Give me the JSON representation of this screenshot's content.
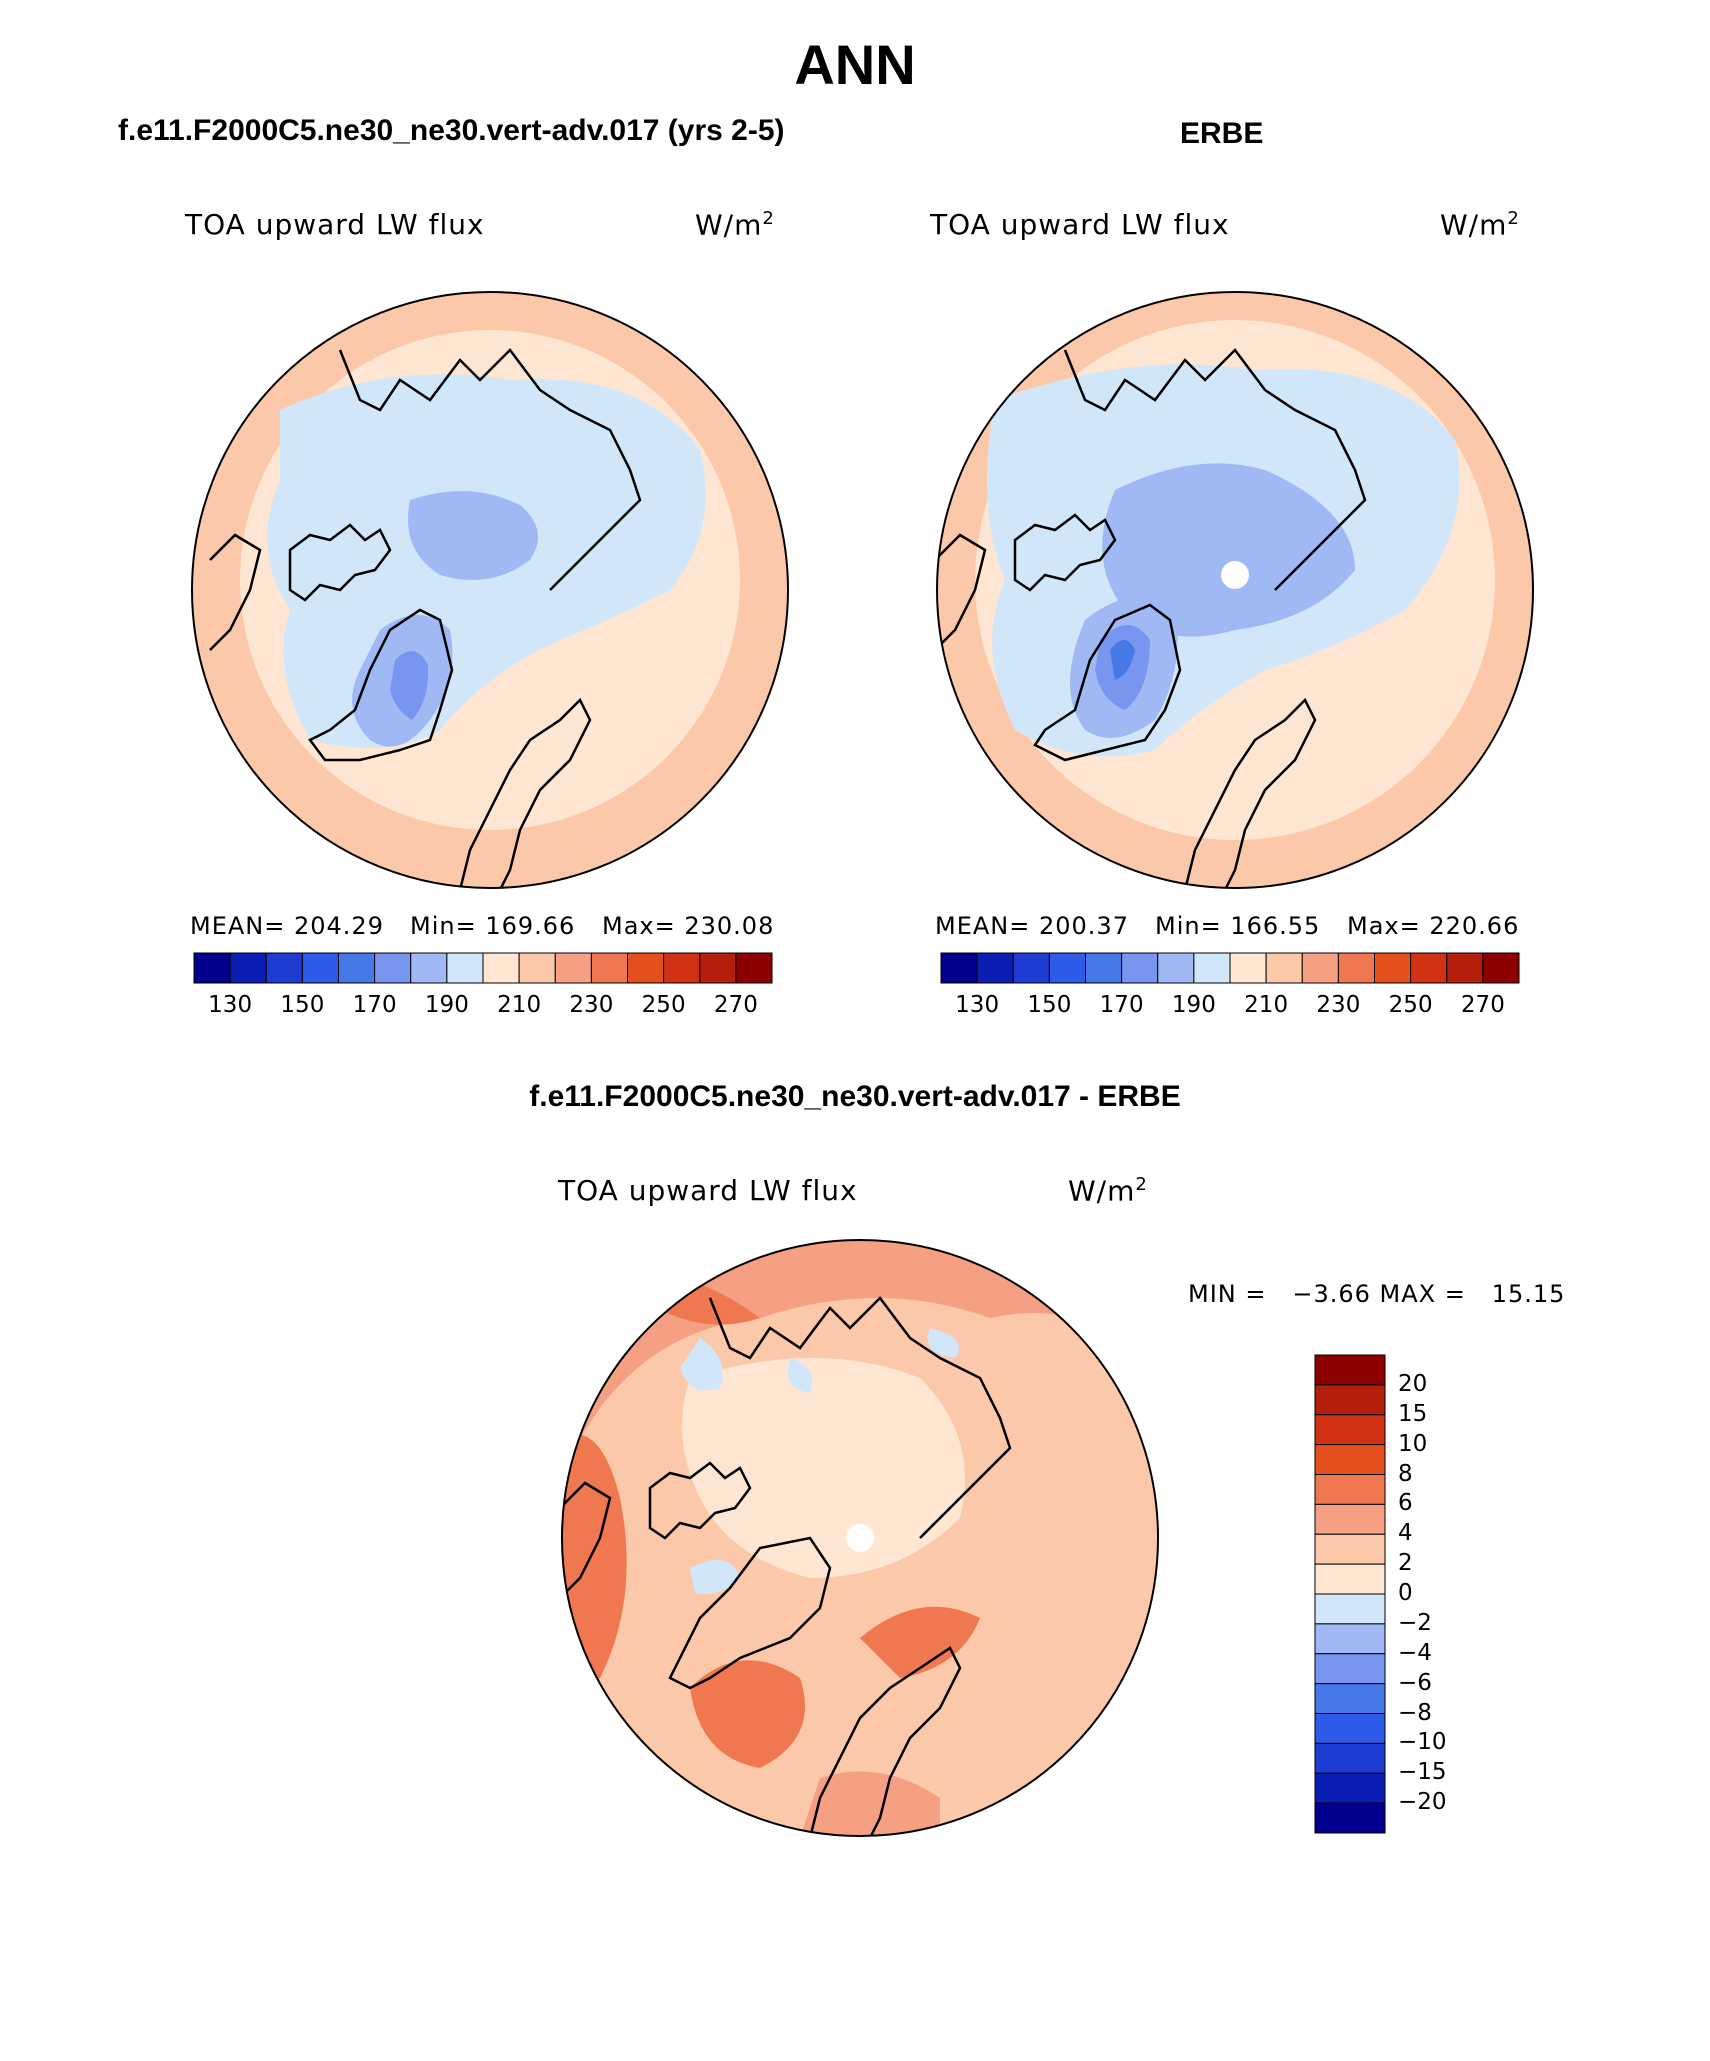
{
  "title": "ANN",
  "panels": [
    {
      "case": "f.e11.F2000C5.ne30_ne30.vert-adv.017 (yrs 2-5)",
      "variable": "TOA upward LW flux",
      "units": "W/m",
      "units_exp": "2",
      "mean_label": "MEAN= 204.29",
      "min_label": "Min= 169.66",
      "max_label": "Max= 230.08"
    },
    {
      "case": "ERBE",
      "variable": "TOA upward LW flux",
      "units": "W/m",
      "units_exp": "2",
      "mean_label": "MEAN= 200.37",
      "min_label": "Min= 166.55",
      "max_label": "Max= 220.66"
    }
  ],
  "diff": {
    "case": "f.e11.F2000C5.ne30_ne30.vert-adv.017 - ERBE",
    "variable": "TOA upward LW flux",
    "units": "W/m",
    "units_exp": "2",
    "minmax_label": "MIN =   −3.66 MAX =   15.15"
  },
  "colorbar_abs": {
    "colors": [
      "#00008c",
      "#0a1eb4",
      "#1e3cd2",
      "#2d5ae6",
      "#4678e6",
      "#7896f0",
      "#a0b9f5",
      "#d2e6fa",
      "#ffe6d2",
      "#fcc8aa",
      "#f5a082",
      "#f07850",
      "#e6501e",
      "#d23214",
      "#b41e0a",
      "#8c0000"
    ],
    "ticks": [
      "130",
      "150",
      "170",
      "190",
      "210",
      "230",
      "250",
      "270"
    ]
  },
  "colorbar_diff": {
    "colors": [
      "#8c0000",
      "#b41e0a",
      "#d23214",
      "#e6501e",
      "#f07850",
      "#f5a082",
      "#fcc8aa",
      "#ffe6d2",
      "#d2e6fa",
      "#a0b9f5",
      "#7896f0",
      "#4678e6",
      "#2d5ae6",
      "#1e3cd2",
      "#0a1eb4",
      "#00008c"
    ],
    "ticks": [
      "20",
      "15",
      "10",
      "8",
      "6",
      "4",
      "2",
      "0",
      "−2",
      "−4",
      "−6",
      "−8",
      "−10",
      "−15",
      "−20"
    ]
  }
}
